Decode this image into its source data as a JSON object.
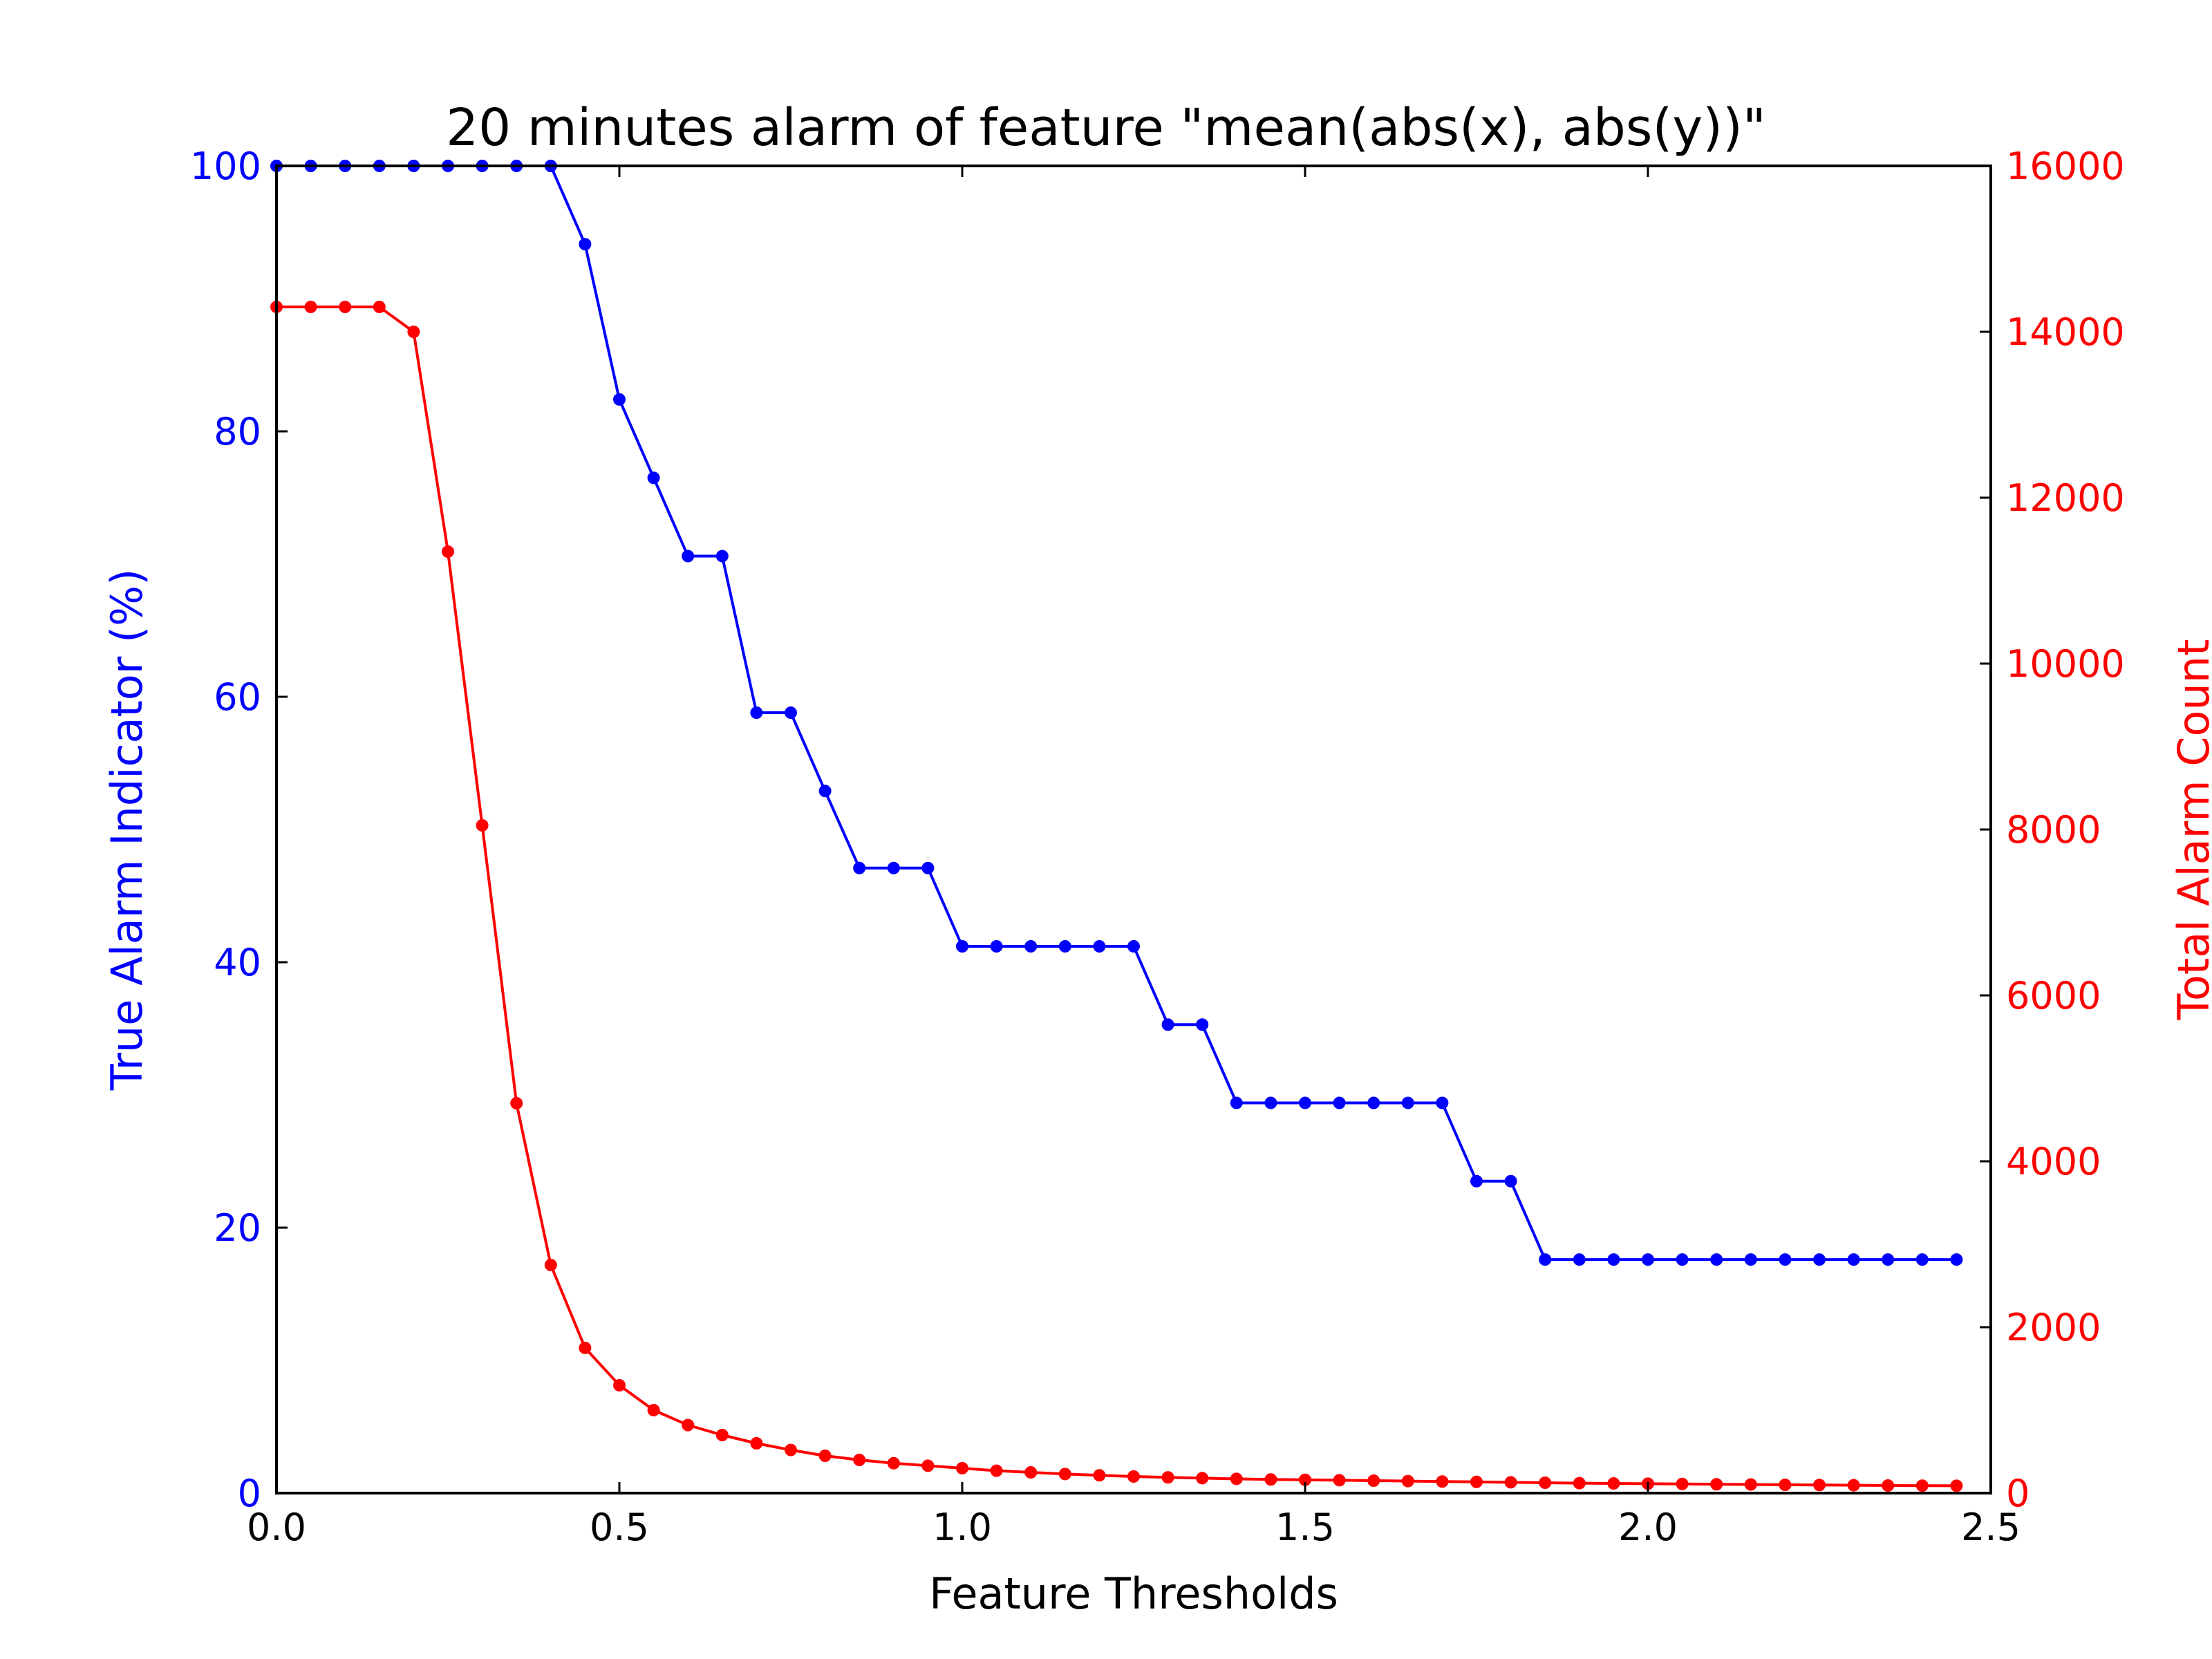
{
  "chart_data": {
    "type": "line",
    "title": "20 minutes alarm of feature \"mean(abs(x), abs(y))\"",
    "xlabel": "Feature Thresholds",
    "ylabel_left": "True Alarm Indicator (%)",
    "ylabel_right": "Total Alarm Count",
    "xlim": [
      0.0,
      2.5
    ],
    "ylim_left": [
      0,
      100
    ],
    "ylim_right": [
      0,
      16000
    ],
    "x_ticks": [
      "0.0",
      "0.5",
      "1.0",
      "1.5",
      "2.0",
      "2.5"
    ],
    "y_left_ticks": [
      "0",
      "20",
      "40",
      "60",
      "80",
      "100"
    ],
    "y_right_ticks": [
      "0",
      "2000",
      "4000",
      "6000",
      "8000",
      "10000",
      "12000",
      "14000",
      "16000"
    ],
    "grid": false,
    "colors": {
      "left_axis": "#0000ff",
      "right_axis": "#ff0000",
      "frame": "#000000"
    },
    "x": [
      0.0,
      0.05,
      0.1,
      0.15,
      0.2,
      0.25,
      0.3,
      0.35,
      0.4,
      0.45,
      0.5,
      0.55,
      0.6,
      0.65,
      0.7,
      0.75,
      0.8,
      0.85,
      0.9,
      0.95,
      1.0,
      1.05,
      1.1,
      1.15,
      1.2,
      1.25,
      1.3,
      1.35,
      1.4,
      1.45,
      1.5,
      1.55,
      1.6,
      1.65,
      1.7,
      1.75,
      1.8,
      1.85,
      1.9,
      1.95,
      2.0,
      2.05,
      2.1,
      2.15,
      2.2,
      2.25,
      2.3,
      2.35,
      2.4,
      2.45
    ],
    "series": [
      {
        "axis": "left",
        "color": "#0000ff",
        "values": [
          100,
          100,
          100,
          100,
          100,
          100,
          100,
          100,
          100,
          94.1,
          82.4,
          76.5,
          70.6,
          70.6,
          58.8,
          58.8,
          52.9,
          47.1,
          47.1,
          47.1,
          41.2,
          41.2,
          41.2,
          41.2,
          41.2,
          41.2,
          35.3,
          35.3,
          29.4,
          29.4,
          29.4,
          29.4,
          29.4,
          29.4,
          29.4,
          23.5,
          23.5,
          17.6,
          17.6,
          17.6,
          17.6,
          17.6,
          17.6,
          17.6,
          17.6,
          17.6,
          17.6,
          17.6,
          17.6,
          17.6
        ]
      },
      {
        "axis": "right",
        "color": "#ff0000",
        "values": [
          14300,
          14300,
          14300,
          14300,
          14000,
          11350,
          8050,
          4700,
          2750,
          1750,
          1300,
          1000,
          820,
          700,
          600,
          520,
          450,
          400,
          360,
          330,
          300,
          270,
          250,
          230,
          215,
          200,
          190,
          180,
          172,
          165,
          160,
          155,
          150,
          145,
          140,
          135,
          130,
          125,
          120,
          117,
          113,
          110,
          107,
          104,
          100,
          98,
          95,
          92,
          90,
          88
        ]
      }
    ]
  }
}
